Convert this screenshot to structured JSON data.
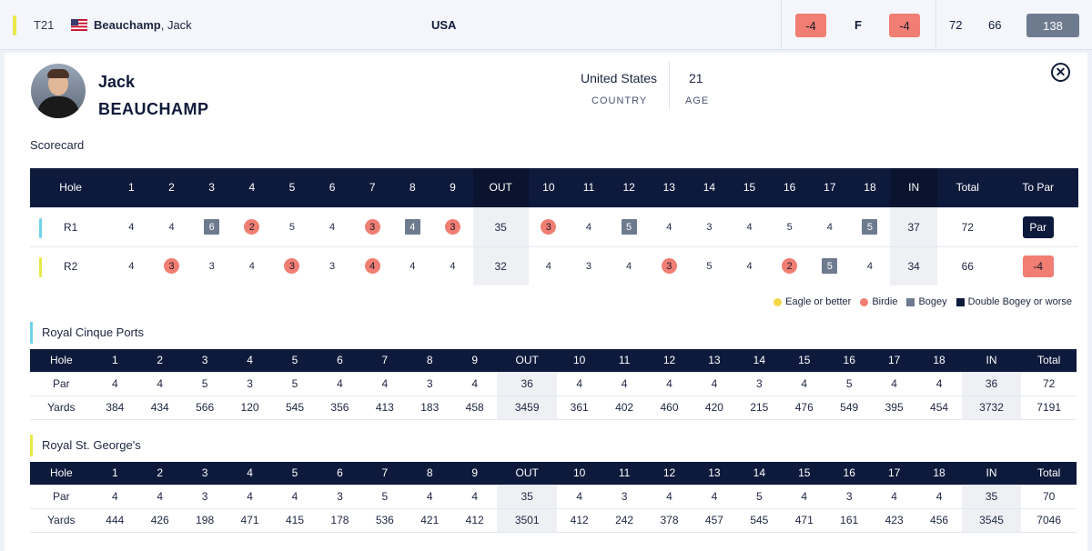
{
  "leaderboard_row": {
    "position": "T21",
    "flag": "us-flag-icon",
    "last_name": "Beauchamp",
    "first_name": "Jack",
    "country": "USA",
    "total_to_par": "-4",
    "thru": "F",
    "today": "-4",
    "r1": "72",
    "r2": "66",
    "total_strokes": "138"
  },
  "player": {
    "first_name": "Jack",
    "last_name": "BEAUCHAMP",
    "country": "United States",
    "country_label": "COUNTRY",
    "age": "21",
    "age_label": "AGE"
  },
  "scorecard": {
    "title": "Scorecard",
    "headers": [
      "Hole",
      "1",
      "2",
      "3",
      "4",
      "5",
      "6",
      "7",
      "8",
      "9",
      "OUT",
      "10",
      "11",
      "12",
      "13",
      "14",
      "15",
      "16",
      "17",
      "18",
      "IN",
      "Total",
      "To Par"
    ],
    "rounds": [
      {
        "label": "R1",
        "accent": "#6fd3e8",
        "front": [
          {
            "v": "4",
            "m": ""
          },
          {
            "v": "4",
            "m": ""
          },
          {
            "v": "6",
            "m": "bogey"
          },
          {
            "v": "2",
            "m": "birdie"
          },
          {
            "v": "5",
            "m": ""
          },
          {
            "v": "4",
            "m": ""
          },
          {
            "v": "3",
            "m": "birdie"
          },
          {
            "v": "4",
            "m": "bogey"
          },
          {
            "v": "3",
            "m": "birdie"
          }
        ],
        "out": "35",
        "back": [
          {
            "v": "3",
            "m": "birdie"
          },
          {
            "v": "4",
            "m": ""
          },
          {
            "v": "5",
            "m": "bogey"
          },
          {
            "v": "4",
            "m": ""
          },
          {
            "v": "3",
            "m": ""
          },
          {
            "v": "4",
            "m": ""
          },
          {
            "v": "5",
            "m": ""
          },
          {
            "v": "4",
            "m": ""
          },
          {
            "v": "5",
            "m": "bogey"
          }
        ],
        "in": "37",
        "total": "72",
        "to_par": "Par",
        "to_par_kind": "even"
      },
      {
        "label": "R2",
        "accent": "#e8e84a",
        "front": [
          {
            "v": "4",
            "m": ""
          },
          {
            "v": "3",
            "m": "birdie"
          },
          {
            "v": "3",
            "m": ""
          },
          {
            "v": "4",
            "m": ""
          },
          {
            "v": "3",
            "m": "birdie"
          },
          {
            "v": "3",
            "m": ""
          },
          {
            "v": "4",
            "m": "birdie"
          },
          {
            "v": "4",
            "m": ""
          },
          {
            "v": "4",
            "m": ""
          }
        ],
        "out": "32",
        "back": [
          {
            "v": "4",
            "m": ""
          },
          {
            "v": "3",
            "m": ""
          },
          {
            "v": "4",
            "m": ""
          },
          {
            "v": "3",
            "m": "birdie"
          },
          {
            "v": "5",
            "m": ""
          },
          {
            "v": "4",
            "m": ""
          },
          {
            "v": "2",
            "m": "birdie"
          },
          {
            "v": "5",
            "m": "bogey"
          },
          {
            "v": "4",
            "m": ""
          }
        ],
        "in": "34",
        "total": "66",
        "to_par": "-4",
        "to_par_kind": "under"
      }
    ]
  },
  "legend": [
    {
      "kind": "eagle",
      "label": "Eagle or better"
    },
    {
      "kind": "birdie",
      "label": "Birdie"
    },
    {
      "kind": "bogey",
      "label": "Bogey"
    },
    {
      "kind": "dbl",
      "label": "Double Bogey or worse"
    }
  ],
  "courses": [
    {
      "name": "Royal Cinque Ports",
      "accent": "#6fd3e8",
      "headers": [
        "Hole",
        "1",
        "2",
        "3",
        "4",
        "5",
        "6",
        "7",
        "8",
        "9",
        "OUT",
        "10",
        "11",
        "12",
        "13",
        "14",
        "15",
        "16",
        "17",
        "18",
        "IN",
        "Total"
      ],
      "par": [
        "Par",
        "4",
        "4",
        "5",
        "3",
        "5",
        "4",
        "4",
        "3",
        "4",
        "36",
        "4",
        "4",
        "4",
        "4",
        "3",
        "4",
        "5",
        "4",
        "4",
        "36",
        "72"
      ],
      "yards": [
        "Yards",
        "384",
        "434",
        "566",
        "120",
        "545",
        "356",
        "413",
        "183",
        "458",
        "3459",
        "361",
        "402",
        "460",
        "420",
        "215",
        "476",
        "549",
        "395",
        "454",
        "3732",
        "7191"
      ]
    },
    {
      "name": "Royal St. George's",
      "accent": "#e8e84a",
      "headers": [
        "Hole",
        "1",
        "2",
        "3",
        "4",
        "5",
        "6",
        "7",
        "8",
        "9",
        "OUT",
        "10",
        "11",
        "12",
        "13",
        "14",
        "15",
        "16",
        "17",
        "18",
        "IN",
        "Total"
      ],
      "par": [
        "Par",
        "4",
        "4",
        "3",
        "4",
        "4",
        "3",
        "5",
        "4",
        "4",
        "35",
        "4",
        "3",
        "4",
        "4",
        "5",
        "4",
        "3",
        "4",
        "4",
        "35",
        "70"
      ],
      "yards": [
        "Yards",
        "444",
        "426",
        "198",
        "471",
        "415",
        "178",
        "536",
        "421",
        "412",
        "3501",
        "412",
        "242",
        "378",
        "457",
        "545",
        "471",
        "161",
        "423",
        "456",
        "3545",
        "7046"
      ]
    }
  ],
  "close_icon": "close-icon"
}
